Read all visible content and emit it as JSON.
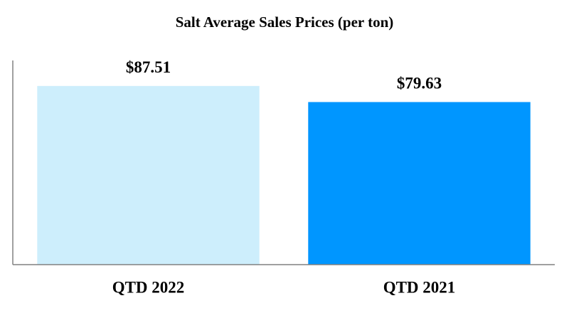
{
  "chart_data": {
    "type": "bar",
    "title": "Salt Average Sales Prices (per ton)",
    "categories": [
      "QTD 2022",
      "QTD 2021"
    ],
    "values": [
      87.51,
      79.63
    ],
    "value_labels": [
      "$87.51",
      "$79.63"
    ],
    "colors": [
      "#cdeefc",
      "#0096ff"
    ],
    "ylim": [
      0,
      100
    ]
  }
}
